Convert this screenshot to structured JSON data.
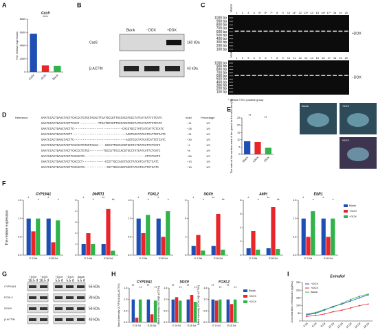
{
  "panels": {
    "letters": [
      "A",
      "B",
      "C",
      "D",
      "E",
      "F",
      "G",
      "H",
      "I"
    ],
    "B": {
      "lanes": [
        "Blank",
        "−DOX",
        "+DOX"
      ],
      "rows": [
        {
          "label": "Cas9",
          "size": "160 kDa"
        },
        {
          "label": "β-ACTIN",
          "size": "43 kDa"
        }
      ]
    },
    "C": {
      "marker": "Marker",
      "lanes_top": [
        "1",
        "2",
        "3",
        "4",
        "5*",
        "6*",
        "7*",
        "8",
        "9",
        "10",
        "11*",
        "12",
        "13*",
        "14",
        "15",
        "16*",
        "17*",
        "18",
        "19",
        "20"
      ],
      "lanes_bottom": [
        "1",
        "2",
        "3",
        "4",
        "5",
        "6",
        "7",
        "8",
        "9",
        "10",
        "11",
        "12",
        "13",
        "14",
        "15",
        "16",
        "17",
        "18",
        "19",
        "20"
      ],
      "ladder": [
        "1000 bp",
        "900 bp",
        "800 bp",
        "700 bp",
        "600 bp",
        "500 bp",
        "400 bp",
        "300 bp",
        "200 bp",
        "100 bp"
      ],
      "gel_labels": [
        "+DOX",
        "−DOX"
      ],
      "note": "* means T7E1 positive group"
    },
    "D": {
      "headers": [
        "Indel",
        "Percentage"
      ],
      "reference_label": "Reference",
      "reference": "GAATCCACTGAACTACTTCACCCTGTGCTAGACTTGATGCCGTTGCCACGTGCCTATCATCATTCTCATC",
      "rows": [
        {
          "seq": "GAATCCACTGAACTACTTCACC-----------TTGATGCCGTTGCCACGTGCCTATCATCATTCTCATC",
          "indel": "−11",
          "pct": "1/9"
        },
        {
          "seq": "GAATCCACTGAACTACTTC----------------------------CACGTGCCTATCATCATTCTCATC",
          "indel": "−28",
          "pct": "1/9"
        },
        {
          "seq": "GAATCCACTGAACTACTT-------------------------------ACGTGCCTATCATCATTCTCATC",
          "indel": "−31",
          "pct": "1/9"
        },
        {
          "seq": "GAATCCACTGAACTACTTC------------------------------ACGTGCCTATCATCATTCTCATC",
          "indel": "−30",
          "pct": "1/9"
        },
        {
          "seq": "GAATCCACTGAACTACTTCACCCTGTGCTAGAC----GCCGTTGCCACGTGCCTATCATCATTCTCATC",
          "indel": "−4",
          "pct": "1/9"
        },
        {
          "seq": "GAATCCACTGAACTACTTCACCCTGTGC--------TGCCGTTGCCACGTGCCTATCATCATTCTCATC",
          "indel": "−8",
          "pct": "1/9"
        },
        {
          "seq": "GAATCCACTGAACTACTTCACCCTG-----------------------------------ATTCTCATC",
          "indel": "−64",
          "pct": "1/9"
        },
        {
          "seq": "GAATCCACTGAACTACTTCACCCT-------------CCGTTGCCACGTGCCTATCATCATTCTCATC",
          "indel": "−13",
          "pct": "1/9"
        },
        {
          "seq": "GAATCCACTGAACTACTTCACCCTG-------------CGTTGCCACGTGCCTATCATCATTCTCATC",
          "indel": "−13",
          "pct": "1/9"
        }
      ]
    },
    "E": {
      "image_labels": [
        "Blank",
        "−DOX",
        "+DOX"
      ]
    },
    "F": {
      "y_label": "The relative expression"
    },
    "G": {
      "groups": [
        {
          "lanes": [
            "+DOX",
            "−DOX"
          ],
          "age": "18.5 d"
        },
        {
          "lanes": [
            "+DOX",
            "−DOX",
            "Blank"
          ],
          "age": "5.5 d"
        }
      ],
      "rows": [
        {
          "label": "CYP19A1",
          "size": "55 kDa"
        },
        {
          "label": "FOXL2",
          "size": "39 kDa"
        },
        {
          "label": "SOX9",
          "size": "56 kDa"
        },
        {
          "label": "β-ACTIN",
          "size": "43 kDa"
        }
      ]
    }
  },
  "chart_data": [
    {
      "type": "bar",
      "title": "Cas9",
      "y_label": "The relative expression",
      "categories": [
        "+DOX",
        "-DOX",
        "Blank"
      ],
      "values": [
        5800,
        1000,
        950
      ],
      "colors": [
        "#1f4fb4",
        "#e8262a",
        "#2fb34a"
      ],
      "ylim": [
        0,
        8000
      ],
      "yticks": [
        0,
        2000,
        4000,
        6000,
        8000
      ],
      "annotations": [
        "****"
      ]
    },
    {
      "type": "bar",
      "y_label": "The ratio of the surface area of the gonad to the total area(%)",
      "categories": [
        "Blank",
        "+DOX",
        "-DOX"
      ],
      "values": [
        9,
        8.5,
        4.5
      ],
      "colors": [
        "#1f4fb4",
        "#e8262a",
        "#2fb34a"
      ],
      "ylim": [
        0,
        25
      ],
      "yticks": [
        0,
        5,
        10,
        15,
        20,
        25
      ],
      "annotations": [
        "**",
        "**"
      ]
    },
    {
      "type": "grouped_bar",
      "title": "CYP19A1",
      "categories": [
        "E 5.5d",
        "E18.5d"
      ],
      "series": [
        {
          "name": "Blank",
          "color": "#1f4fb4",
          "values": [
            1,
            1
          ]
        },
        {
          "name": "+DOX",
          "color": "#e8262a",
          "values": [
            0.65,
            0.35
          ]
        },
        {
          "name": "−DOX",
          "color": "#2fb34a",
          "values": [
            1.0,
            0.95
          ]
        }
      ],
      "ylim": [
        0,
        1.5
      ],
      "yticks": [
        {
          "value": 0,
          "label": "0.0"
        },
        0.5,
        {
          "value": 1,
          "label": "1.0"
        },
        1.5
      ],
      "annotations": [
        "*",
        "*",
        "*",
        "*"
      ]
    },
    {
      "type": "grouped_bar",
      "title": "DMRT1",
      "categories": [
        "E 5.5d",
        "E18.5d"
      ],
      "series": [
        {
          "name": "Blank",
          "color": "#1f4fb4",
          "values": [
            1,
            1
          ]
        },
        {
          "name": "+DOX",
          "color": "#e8262a",
          "values": [
            2,
            4.2
          ]
        },
        {
          "name": "−DOX",
          "color": "#2fb34a",
          "values": [
            1,
            0.4
          ]
        }
      ],
      "ylim": [
        0,
        5
      ],
      "yticks": [
        0,
        1,
        2,
        3,
        4,
        5
      ],
      "annotations": [
        "*",
        "*",
        "**",
        "**"
      ]
    },
    {
      "type": "grouped_bar",
      "title": "FOXL2",
      "categories": [
        "E 5.5d",
        "E18.5d"
      ],
      "series": [
        {
          "name": "Blank",
          "color": "#1f4fb4",
          "values": [
            1,
            1
          ]
        },
        {
          "name": "+DOX",
          "color": "#e8262a",
          "values": [
            0.6,
            0.5
          ]
        },
        {
          "name": "−DOX",
          "color": "#2fb34a",
          "values": [
            1.1,
            1.2
          ]
        }
      ],
      "ylim": [
        0,
        1.5
      ],
      "yticks": [
        {
          "value": 0,
          "label": "0.0"
        },
        0.5,
        {
          "value": 1,
          "label": "1.0"
        },
        1.5
      ],
      "annotations": [
        "*",
        "*",
        "*",
        "*"
      ]
    },
    {
      "type": "grouped_bar",
      "title": "SOX9",
      "categories": [
        "E 5.5d",
        "E18.5d"
      ],
      "series": [
        {
          "name": "Blank",
          "color": "#1f4fb4",
          "values": [
            1,
            1
          ]
        },
        {
          "name": "+DOX",
          "color": "#e8262a",
          "values": [
            2.2,
            4.5
          ]
        },
        {
          "name": "−DOX",
          "color": "#2fb34a",
          "values": [
            0.5,
            0.6
          ]
        }
      ],
      "ylim": [
        0,
        6
      ],
      "yticks": [
        0,
        2,
        4,
        6
      ],
      "annotations": [
        "*",
        "*",
        "**",
        "**"
      ]
    },
    {
      "type": "grouped_bar",
      "title": "AMH",
      "categories": [
        "E 5.5d",
        "E18.5d"
      ],
      "series": [
        {
          "name": "Blank",
          "color": "#1f4fb4",
          "values": [
            1,
            1
          ]
        },
        {
          "name": "+DOX",
          "color": "#e8262a",
          "values": [
            3.5,
            7
          ]
        },
        {
          "name": "−DOX",
          "color": "#2fb34a",
          "values": [
            0.8,
            0.9
          ]
        }
      ],
      "ylim": [
        0,
        8
      ],
      "yticks": [
        0,
        2,
        4,
        6,
        8
      ],
      "annotations": [
        "*",
        "*",
        "**",
        "**"
      ]
    },
    {
      "type": "grouped_bar",
      "title": "ESR1",
      "categories": [
        "E 5.5d",
        "E18.5d"
      ],
      "series": [
        {
          "name": "Blank",
          "color": "#1f4fb4",
          "values": [
            1,
            1
          ]
        },
        {
          "name": "+DOX",
          "color": "#e8262a",
          "values": [
            0.5,
            0.5
          ]
        },
        {
          "name": "−DOX",
          "color": "#2fb34a",
          "values": [
            1.2,
            1.0
          ]
        }
      ],
      "ylim": [
        0,
        1.5
      ],
      "yticks": [
        {
          "value": 0,
          "label": "0.0"
        },
        0.5,
        {
          "value": 1,
          "label": "1.0"
        },
        1.5
      ],
      "annotations": [
        "*",
        "*",
        "*",
        "*"
      ]
    },
    {
      "type": "grouped_bar",
      "title": "CYP19A1",
      "y_label": "Band intensity (CYP19A1/β-ACTIN)",
      "categories": [
        "E 5.5d",
        "E18.5d"
      ],
      "series": [
        {
          "name": "Blank",
          "color": "#1f4fb4",
          "values": [
            1,
            1
          ]
        },
        {
          "name": "+DOX",
          "color": "#e8262a",
          "values": [
            0.2,
            0.35
          ]
        },
        {
          "name": "−DOX",
          "color": "#2fb34a",
          "values": [
            1.0,
            0.95
          ]
        }
      ],
      "ylim": [
        0,
        1.5
      ],
      "yticks": [
        {
          "value": 0,
          "label": "0.0"
        },
        0.5,
        {
          "value": 1,
          "label": "1.0"
        },
        1.5
      ],
      "annotations": [
        "**",
        "**",
        "**",
        "**"
      ]
    },
    {
      "type": "grouped_bar",
      "title": "SOX9",
      "y_label": "Band intensity (SOX9/β-ACTIN)",
      "categories": [
        "E 5.5d",
        "E18.5d"
      ],
      "series": [
        {
          "name": "Blank",
          "color": "#1f4fb4",
          "values": [
            1,
            1
          ]
        },
        {
          "name": "+DOX",
          "color": "#e8262a",
          "values": [
            1.1,
            1.2
          ]
        },
        {
          "name": "−DOX",
          "color": "#2fb34a",
          "values": [
            0.95,
            0.9
          ]
        }
      ],
      "ylim": [
        0,
        1.5
      ],
      "yticks": [
        {
          "value": 0,
          "label": "0.0"
        },
        0.5,
        {
          "value": 1,
          "label": "1.0"
        },
        1.5
      ],
      "annotations": [
        "**",
        "**",
        "**",
        "**"
      ]
    },
    {
      "type": "grouped_bar",
      "title": "FOXL2",
      "y_label": "Band intensity (FOXL2/β-ACTIN)",
      "categories": [
        "E 5.5d",
        "E18.5d"
      ],
      "series": [
        {
          "name": "Blank",
          "color": "#1f4fb4",
          "values": [
            1,
            1
          ]
        },
        {
          "name": "+DOX",
          "color": "#e8262a",
          "values": [
            0.95,
            0.8
          ]
        },
        {
          "name": "−DOX",
          "color": "#2fb34a",
          "values": [
            1.0,
            1.0
          ]
        }
      ],
      "ylim": [
        0,
        1.5
      ],
      "yticks": [
        {
          "value": 0,
          "label": "0.0"
        },
        0.5,
        {
          "value": 1,
          "label": "1.0"
        },
        1.5
      ],
      "annotations": [
        "**",
        "**",
        "**",
        "**"
      ]
    },
    {
      "type": "line",
      "title": "Estradiol",
      "y_label": "Concentration of Estradiol (pg/mL)",
      "categories": [
        "4.5d",
        "6.5d",
        "8.5d",
        "10.5d",
        "12.5d",
        "14.5d",
        "16.5d",
        "18.5d"
      ],
      "series": [
        {
          "name": "−DOX",
          "color": "#1f4fb4",
          "values": [
            40,
            50,
            70,
            95,
            110,
            130,
            150,
            170
          ]
        },
        {
          "name": "+DOX",
          "color": "#e8262a",
          "values": [
            30,
            35,
            45,
            60,
            70,
            85,
            100,
            110
          ]
        },
        {
          "name": "Blank",
          "color": "#2fb34a",
          "values": [
            45,
            55,
            75,
            90,
            115,
            140,
            160,
            175
          ]
        }
      ],
      "ylim": [
        0,
        250
      ],
      "yticks": [
        0,
        50,
        100,
        150,
        200,
        250
      ]
    }
  ]
}
